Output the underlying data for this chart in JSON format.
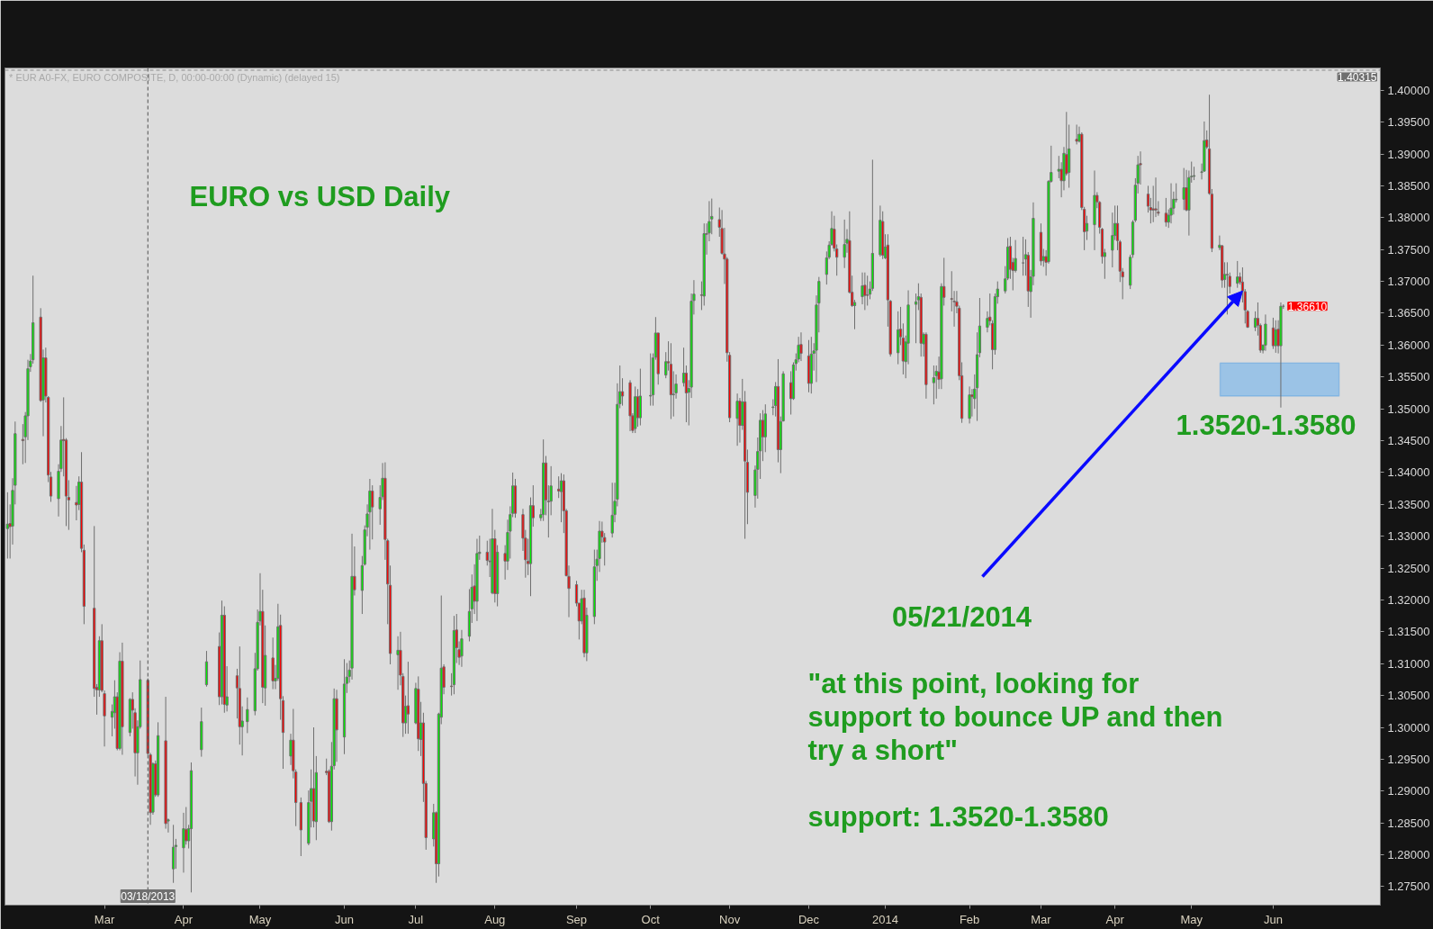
{
  "chart_data": {
    "type": "candlestick",
    "title": "EURO vs USD Daily",
    "subtitle": "* EUR A0-FX, EURO COMPOSITE, D, 00:00-00:00 (Dynamic) (delayed 15)",
    "x": [
      "2013-01-22",
      "2013-01-23",
      "2013-01-24",
      "2013-01-25",
      "2013-01-28",
      "2013-01-29",
      "2013-01-30",
      "2013-01-31",
      "2013-02-01",
      "2013-02-04",
      "2013-02-05",
      "2013-02-06",
      "2013-02-07",
      "2013-02-08",
      "2013-02-11",
      "2013-02-12",
      "2013-02-13",
      "2013-02-14",
      "2013-02-15",
      "2013-02-18",
      "2013-02-19",
      "2013-02-20",
      "2013-02-21",
      "2013-02-25",
      "2013-02-26",
      "2013-02-27",
      "2013-02-28",
      "2013-03-01",
      "2013-03-04",
      "2013-03-05",
      "2013-03-06",
      "2013-03-07",
      "2013-03-08",
      "2013-03-11",
      "2013-03-12",
      "2013-03-13",
      "2013-03-14",
      "2013-03-15",
      "2013-03-18",
      "2013-03-19",
      "2013-03-20",
      "2013-03-21",
      "2013-03-22",
      "2013-03-25",
      "2013-03-26",
      "2013-03-28",
      "2013-03-29",
      "2013-04-01",
      "2013-04-02",
      "2013-04-03",
      "2013-04-04",
      "2013-04-08",
      "2013-04-10",
      "2013-04-15",
      "2013-04-16",
      "2013-04-17",
      "2013-04-18",
      "2013-04-22",
      "2013-04-23",
      "2013-04-24",
      "2013-04-26",
      "2013-04-29",
      "2013-04-30",
      "2013-05-01",
      "2013-05-02",
      "2013-05-03",
      "2013-05-06",
      "2013-05-07",
      "2013-05-08",
      "2013-05-09",
      "2013-05-10",
      "2013-05-13",
      "2013-05-14",
      "2013-05-15",
      "2013-05-17",
      "2013-05-20",
      "2013-05-21",
      "2013-05-22",
      "2013-05-23",
      "2013-05-27",
      "2013-05-28",
      "2013-05-29",
      "2013-05-30",
      "2013-05-31",
      "2013-06-03",
      "2013-06-04",
      "2013-06-05",
      "2013-06-06",
      "2013-06-07",
      "2013-06-10",
      "2013-06-11",
      "2013-06-12",
      "2013-06-13",
      "2013-06-14",
      "2013-06-17",
      "2013-06-18",
      "2013-06-19",
      "2013-06-20",
      "2013-06-21",
      "2013-06-24",
      "2013-06-25",
      "2013-06-26",
      "2013-06-27",
      "2013-06-28",
      "2013-07-01",
      "2013-07-02",
      "2013-07-03",
      "2013-07-04",
      "2013-07-05",
      "2013-07-08",
      "2013-07-09",
      "2013-07-10",
      "2013-07-11",
      "2013-07-12",
      "2013-07-15",
      "2013-07-16",
      "2013-07-17",
      "2013-07-18",
      "2013-07-19",
      "2013-07-22",
      "2013-07-23",
      "2013-07-24",
      "2013-07-25",
      "2013-07-26",
      "2013-07-29",
      "2013-07-30",
      "2013-07-31",
      "2013-08-01",
      "2013-08-02",
      "2013-08-05",
      "2013-08-06",
      "2013-08-07",
      "2013-08-08",
      "2013-08-09",
      "2013-08-12",
      "2013-08-13",
      "2013-08-14",
      "2013-08-15",
      "2013-08-16",
      "2013-08-19",
      "2013-08-20",
      "2013-08-21",
      "2013-08-22",
      "2013-08-23",
      "2013-08-26",
      "2013-08-27",
      "2013-08-28",
      "2013-08-29",
      "2013-08-30",
      "2013-09-02",
      "2013-09-03",
      "2013-09-04",
      "2013-09-05",
      "2013-09-06",
      "2013-09-09",
      "2013-09-10",
      "2013-09-11",
      "2013-09-12",
      "2013-09-13",
      "2013-09-16",
      "2013-09-17",
      "2013-09-18",
      "2013-09-19",
      "2013-09-20",
      "2013-09-23",
      "2013-09-24",
      "2013-09-25",
      "2013-09-26",
      "2013-09-27",
      "2013-10-01",
      "2013-10-02",
      "2013-10-03",
      "2013-10-04",
      "2013-10-07",
      "2013-10-08",
      "2013-10-09",
      "2013-10-10",
      "2013-10-11",
      "2013-10-14",
      "2013-10-15",
      "2013-10-16",
      "2013-10-17",
      "2013-10-18",
      "2013-10-21",
      "2013-10-22",
      "2013-10-23",
      "2013-10-24",
      "2013-10-25",
      "2013-10-28",
      "2013-10-29",
      "2013-10-30",
      "2013-10-31",
      "2013-11-01",
      "2013-11-04",
      "2013-11-05",
      "2013-11-06",
      "2013-11-07",
      "2013-11-08",
      "2013-11-11",
      "2013-11-12",
      "2013-11-13",
      "2013-11-14",
      "2013-11-15",
      "2013-11-18",
      "2013-11-19",
      "2013-11-20",
      "2013-11-21",
      "2013-11-22",
      "2013-11-25",
      "2013-11-26",
      "2013-11-27",
      "2013-11-28",
      "2013-11-29",
      "2013-12-02",
      "2013-12-03",
      "2013-12-04",
      "2013-12-05",
      "2013-12-06",
      "2013-12-09",
      "2013-12-10",
      "2013-12-11",
      "2013-12-12",
      "2013-12-13",
      "2013-12-16",
      "2013-12-17",
      "2013-12-18",
      "2013-12-19",
      "2013-12-20",
      "2013-12-23",
      "2013-12-24",
      "2013-12-25",
      "2013-12-26",
      "2013-12-27",
      "2013-12-30",
      "2013-12-31",
      "2014-01-01",
      "2014-01-02",
      "2014-01-03",
      "2014-01-06",
      "2014-01-07",
      "2014-01-08",
      "2014-01-09",
      "2014-01-10",
      "2014-01-13",
      "2014-01-14",
      "2014-01-15",
      "2014-01-16",
      "2014-01-17",
      "2014-01-20",
      "2014-01-21",
      "2014-01-22",
      "2014-01-23",
      "2014-01-24",
      "2014-01-27",
      "2014-01-28",
      "2014-01-29",
      "2014-01-30",
      "2014-01-31",
      "2014-02-03",
      "2014-02-04",
      "2014-02-05",
      "2014-02-06",
      "2014-02-07",
      "2014-02-10",
      "2014-02-11",
      "2014-02-12",
      "2014-02-13",
      "2014-02-14",
      "2014-02-17",
      "2014-02-18",
      "2014-02-19",
      "2014-02-20",
      "2014-02-21",
      "2014-02-24",
      "2014-02-25",
      "2014-02-26",
      "2014-02-27",
      "2014-02-28",
      "2014-03-03",
      "2014-03-04",
      "2014-03-05",
      "2014-03-06",
      "2014-03-07",
      "2014-03-10",
      "2014-03-11",
      "2014-03-12",
      "2014-03-13",
      "2014-03-14",
      "2014-03-17",
      "2014-03-18",
      "2014-03-19",
      "2014-03-20",
      "2014-03-21",
      "2014-03-24",
      "2014-03-25",
      "2014-03-26",
      "2014-03-27",
      "2014-03-28",
      "2014-03-31",
      "2014-04-01",
      "2014-04-02",
      "2014-04-03",
      "2014-04-04",
      "2014-04-07",
      "2014-04-08",
      "2014-04-09",
      "2014-04-10",
      "2014-04-11",
      "2014-04-14",
      "2014-04-15",
      "2014-04-16",
      "2014-04-17",
      "2014-04-18",
      "2014-04-21",
      "2014-04-22",
      "2014-04-23",
      "2014-04-24",
      "2014-04-25",
      "2014-04-28",
      "2014-04-29",
      "2014-04-30",
      "2014-05-01",
      "2014-05-02",
      "2014-05-05",
      "2014-05-06",
      "2014-05-07",
      "2014-05-08",
      "2014-05-09",
      "2014-05-12",
      "2014-05-13",
      "2014-05-14",
      "2014-05-15",
      "2014-05-16",
      "2014-05-19",
      "2014-05-20",
      "2014-05-21",
      "2014-05-22",
      "2014-05-23",
      "2014-05-26",
      "2014-05-27",
      "2014-05-28",
      "2014-05-29",
      "2014-05-30",
      "2014-06-02",
      "2014-06-03",
      "2014-06-04",
      "2014-06-05",
      "2014-06-06"
    ],
    "ohlc": [
      [
        1.3312,
        1.3369,
        1.3265,
        1.3319
      ],
      [
        1.332,
        1.335,
        1.3265,
        1.3315
      ],
      [
        1.3316,
        1.3391,
        1.3287,
        1.3372
      ],
      [
        1.338,
        1.348,
        1.335,
        1.3461
      ],
      [
        1.3452,
        1.3476,
        1.3413,
        1.345
      ],
      [
        1.3456,
        1.3495,
        1.3415,
        1.3489
      ],
      [
        1.3489,
        1.3577,
        1.3451,
        1.3563
      ],
      [
        1.3566,
        1.3586,
        1.3558,
        1.3575
      ],
      [
        1.3577,
        1.3709,
        1.3571,
        1.3635
      ],
      [
        1.3644,
        1.3658,
        1.3511,
        1.3513
      ],
      [
        1.3514,
        1.3593,
        1.3457,
        1.358
      ],
      [
        1.358,
        1.3596,
        1.351,
        1.352
      ],
      [
        1.3518,
        1.352,
        1.3385,
        1.3396
      ],
      [
        1.3393,
        1.3401,
        1.3354,
        1.3363
      ],
      [
        1.3359,
        1.3413,
        1.3331,
        1.3402
      ],
      [
        1.3406,
        1.3473,
        1.3401,
        1.3451
      ],
      [
        1.3452,
        1.3518,
        1.3394,
        1.345
      ],
      [
        1.3451,
        1.3454,
        1.3316,
        1.3363
      ],
      [
        1.3361,
        1.3388,
        1.331,
        1.3357
      ],
      [
        1.3353,
        1.3379,
        1.3325,
        1.3349
      ],
      [
        1.335,
        1.3394,
        1.3341,
        1.3385
      ],
      [
        1.3385,
        1.3432,
        1.3275,
        1.3281
      ],
      [
        1.3278,
        1.3287,
        1.3162,
        1.319
      ],
      [
        1.3187,
        1.3316,
        1.3048,
        1.3061
      ],
      [
        1.3063,
        1.3068,
        1.302,
        1.3059
      ],
      [
        1.3059,
        1.3143,
        1.3048,
        1.3136
      ],
      [
        1.3136,
        1.3162,
        1.3055,
        1.3058
      ],
      [
        1.3053,
        1.3058,
        1.297,
        1.3018
      ],
      [
        1.3016,
        1.3036,
        1.2986,
        1.3025
      ],
      [
        1.3023,
        1.3074,
        1.2998,
        1.3048
      ],
      [
        1.3048,
        1.3055,
        1.2964,
        1.2967
      ],
      [
        1.2967,
        1.3118,
        1.2964,
        1.3104
      ],
      [
        1.3104,
        1.3133,
        1.2957,
        1.3001
      ],
      [
        1.2992,
        1.3046,
        1.2986,
        1.3044
      ],
      [
        1.3044,
        1.3055,
        1.2998,
        1.3027
      ],
      [
        1.3023,
        1.303,
        1.2923,
        1.296
      ],
      [
        1.296,
        1.3011,
        1.291,
        1.3001
      ],
      [
        1.3001,
        1.3105,
        1.2998,
        1.3075
      ],
      [
        1.3074,
        1.3077,
        1.2957,
        1.2959
      ],
      [
        1.2957,
        1.296,
        1.2847,
        1.2866
      ],
      [
        1.2867,
        1.2945,
        1.2863,
        1.2943
      ],
      [
        1.2943,
        1.2948,
        1.2891,
        1.2894
      ],
      [
        1.2894,
        1.3008,
        1.2891,
        1.2987
      ],
      [
        1.2979,
        1.3048,
        1.2841,
        1.2849
      ],
      [
        1.2853,
        1.2857,
        1.2835,
        1.2855
      ],
      [
        1.2778,
        1.2847,
        1.2756,
        1.2812
      ],
      [
        1.2813,
        1.2825,
        1.2778,
        1.2815
      ],
      [
        1.2811,
        1.2866,
        1.2772,
        1.2841
      ],
      [
        1.284,
        1.2875,
        1.2816,
        1.2822
      ],
      [
        1.2822,
        1.2847,
        1.281,
        1.2841
      ],
      [
        1.2841,
        1.2945,
        1.2741,
        1.2932
      ],
      [
        1.2965,
        1.3031,
        1.2954,
        1.3009
      ],
      [
        1.3067,
        1.312,
        1.3064,
        1.3103
      ],
      [
        1.3127,
        1.3149,
        1.3035,
        1.3048
      ],
      [
        1.3048,
        1.3199,
        1.3036,
        1.3176
      ],
      [
        1.3176,
        1.319,
        1.3023,
        1.3036
      ],
      [
        1.3035,
        1.3096,
        1.3025,
        1.3048
      ],
      [
        1.3081,
        1.3092,
        1.3014,
        1.3062
      ],
      [
        1.3061,
        1.3127,
        1.2973,
        1.3001
      ],
      [
        1.3001,
        1.3033,
        1.2956,
        1.301
      ],
      [
        1.3009,
        1.3047,
        1.2991,
        1.3028
      ],
      [
        1.3026,
        1.3117,
        1.3019,
        1.3092
      ],
      [
        1.3092,
        1.3185,
        1.3089,
        1.3165
      ],
      [
        1.3167,
        1.3242,
        1.316,
        1.3182
      ],
      [
        1.3182,
        1.3216,
        1.3038,
        1.3063
      ],
      [
        1.3062,
        1.316,
        1.3034,
        1.3113
      ],
      [
        1.3109,
        1.3141,
        1.306,
        1.3073
      ],
      [
        1.3073,
        1.3098,
        1.306,
        1.3077
      ],
      [
        1.3077,
        1.3194,
        1.3073,
        1.3158
      ],
      [
        1.316,
        1.3177,
        1.3012,
        1.3045
      ],
      [
        1.3042,
        1.3049,
        1.2935,
        1.2992
      ],
      [
        1.2955,
        1.299,
        1.2941,
        1.298
      ],
      [
        1.298,
        1.3029,
        1.292,
        1.2932
      ],
      [
        1.293,
        1.2934,
        1.2845,
        1.2882
      ],
      [
        1.2882,
        1.289,
        1.2798,
        1.2839
      ],
      [
        1.2818,
        1.2901,
        1.2815,
        1.2882
      ],
      [
        1.2884,
        1.2934,
        1.2843,
        1.2904
      ],
      [
        1.2904,
        1.3,
        1.2843,
        1.2853
      ],
      [
        1.2852,
        1.2955,
        1.2823,
        1.2929
      ],
      [
        1.2931,
        1.2951,
        1.2925,
        1.2929
      ],
      [
        1.2931,
        1.2934,
        1.285,
        1.2852
      ],
      [
        1.2852,
        1.2977,
        1.2838,
        1.2939
      ],
      [
        1.294,
        1.3061,
        1.2934,
        1.3045
      ],
      [
        1.3045,
        1.3059,
        1.2946,
        1.2996
      ],
      [
        1.2985,
        1.3107,
        1.2958,
        1.3068
      ],
      [
        1.3069,
        1.3101,
        1.3054,
        1.3079
      ],
      [
        1.308,
        1.3105,
        1.307,
        1.309
      ],
      [
        1.3093,
        1.3304,
        1.3075,
        1.3237
      ],
      [
        1.3237,
        1.3284,
        1.3207,
        1.3216
      ],
      [
        1.3215,
        1.3269,
        1.3178,
        1.3254
      ],
      [
        1.3256,
        1.3317,
        1.3254,
        1.331
      ],
      [
        1.3314,
        1.335,
        1.33,
        1.3335
      ],
      [
        1.3338,
        1.339,
        1.3279,
        1.3371
      ],
      [
        1.3371,
        1.338,
        1.3295,
        1.3346
      ],
      [
        1.3343,
        1.338,
        1.3318,
        1.3361
      ],
      [
        1.3362,
        1.3415,
        1.3357,
        1.3391
      ],
      [
        1.3391,
        1.3416,
        1.3263,
        1.3295
      ],
      [
        1.3293,
        1.3296,
        1.3162,
        1.3225
      ],
      [
        1.3223,
        1.3254,
        1.3099,
        1.3116
      ],
      [
        1.3114,
        1.3143,
        1.3059,
        1.3121
      ],
      [
        1.3121,
        1.315,
        1.3066,
        1.3082
      ],
      [
        1.308,
        1.3085,
        1.2985,
        1.3007
      ],
      [
        1.3007,
        1.305,
        1.299,
        1.3033
      ],
      [
        1.3034,
        1.3103,
        1.299,
        1.3021
      ],
      [
        1.3007,
        1.307,
        1.3005,
        1.3061
      ],
      [
        1.306,
        1.308,
        1.2963,
        1.2982
      ],
      [
        1.2981,
        1.304,
        1.2955,
        1.3007
      ],
      [
        1.3007,
        1.3023,
        1.2883,
        1.2912
      ],
      [
        1.2912,
        1.2916,
        1.2808,
        1.2827
      ],
      [
        1.2825,
        1.288,
        1.2813,
        1.2866
      ],
      [
        1.2866,
        1.2868,
        1.2756,
        1.2786
      ],
      [
        1.2786,
        1.3023,
        1.2766,
        1.3021
      ],
      [
        1.3016,
        1.3207,
        1.3005,
        1.3093
      ],
      [
        1.3095,
        1.3099,
        1.3052,
        1.3063
      ],
      [
        1.3065,
        1.3085,
        1.305,
        1.3064
      ],
      [
        1.3067,
        1.3175,
        1.3052,
        1.3152
      ],
      [
        1.3153,
        1.3178,
        1.3101,
        1.3125
      ],
      [
        1.3122,
        1.3135,
        1.3098,
        1.311
      ],
      [
        1.3112,
        1.3153,
        1.3095,
        1.3139
      ],
      [
        1.3143,
        1.3217,
        1.3135,
        1.3182
      ],
      [
        1.3186,
        1.324,
        1.3164,
        1.322
      ],
      [
        1.3222,
        1.3256,
        1.3178,
        1.3198
      ],
      [
        1.3198,
        1.3296,
        1.3167,
        1.3273
      ],
      [
        1.3273,
        1.3301,
        1.3263,
        1.3275
      ],
      [
        1.3275,
        1.3293,
        1.3254,
        1.3262
      ],
      [
        1.3261,
        1.3296,
        1.3236,
        1.326
      ],
      [
        1.3211,
        1.3343,
        1.3209,
        1.3296
      ],
      [
        1.3296,
        1.331,
        1.3196,
        1.321
      ],
      [
        1.321,
        1.3286,
        1.319,
        1.3275
      ],
      [
        1.3273,
        1.3286,
        1.3232,
        1.3261
      ],
      [
        1.3261,
        1.3326,
        1.3247,
        1.3306
      ],
      [
        1.3308,
        1.3347,
        1.3265,
        1.3334
      ],
      [
        1.3336,
        1.34,
        1.333,
        1.3379
      ],
      [
        1.3379,
        1.339,
        1.3329,
        1.3336
      ],
      [
        1.3334,
        1.3343,
        1.3277,
        1.3297
      ],
      [
        1.3297,
        1.331,
        1.3235,
        1.3263
      ],
      [
        1.3261,
        1.3296,
        1.3239,
        1.3257
      ],
      [
        1.3257,
        1.3361,
        1.3206,
        1.3348
      ],
      [
        1.3348,
        1.338,
        1.3315,
        1.3329
      ],
      [
        1.3329,
        1.3343,
        1.3324,
        1.3334
      ],
      [
        1.3334,
        1.3452,
        1.3324,
        1.3415
      ],
      [
        1.3415,
        1.3426,
        1.3333,
        1.3357
      ],
      [
        1.3355,
        1.338,
        1.3298,
        1.3354
      ],
      [
        1.3355,
        1.341,
        1.3333,
        1.3379
      ],
      [
        1.3374,
        1.3394,
        1.336,
        1.3371
      ],
      [
        1.337,
        1.3399,
        1.3322,
        1.3387
      ],
      [
        1.3387,
        1.3397,
        1.3305,
        1.334
      ],
      [
        1.334,
        1.3343,
        1.3237,
        1.3238
      ],
      [
        1.3237,
        1.3254,
        1.3173,
        1.3218
      ],
      [
        1.3224,
        1.323,
        1.319,
        1.3195
      ],
      [
        1.3195,
        1.3195,
        1.3138,
        1.3167
      ],
      [
        1.3167,
        1.3216,
        1.3162,
        1.3202
      ],
      [
        1.3203,
        1.3216,
        1.311,
        1.3117
      ],
      [
        1.3117,
        1.3188,
        1.3104,
        1.3176
      ],
      [
        1.3174,
        1.3279,
        1.3162,
        1.3252
      ],
      [
        1.3254,
        1.3279,
        1.323,
        1.3264
      ],
      [
        1.3265,
        1.3324,
        1.3244,
        1.3308
      ],
      [
        1.3308,
        1.3323,
        1.329,
        1.3299
      ],
      [
        1.3298,
        1.3305,
        1.3254,
        1.3291
      ],
      [
        1.3305,
        1.3384,
        1.3298,
        1.3333
      ],
      [
        1.3334,
        1.3384,
        1.3322,
        1.3355
      ],
      [
        1.3358,
        1.354,
        1.3347,
        1.3507
      ],
      [
        1.3508,
        1.3568,
        1.3501,
        1.3527
      ],
      [
        1.3527,
        1.3548,
        1.3505,
        1.352
      ],
      [
        1.3541,
        1.3545,
        1.3465,
        1.3489
      ],
      [
        1.3489,
        1.3493,
        1.3462,
        1.3466
      ],
      [
        1.3469,
        1.3535,
        1.3462,
        1.3519
      ],
      [
        1.3519,
        1.3531,
        1.3472,
        1.3486
      ],
      [
        1.3486,
        1.3563,
        1.3474,
        1.352
      ],
      [
        1.352,
        1.3587,
        1.3505,
        1.3521
      ],
      [
        1.3522,
        1.3587,
        1.3505,
        1.358
      ],
      [
        1.3581,
        1.3644,
        1.3577,
        1.3619
      ],
      [
        1.3619,
        1.3619,
        1.3538,
        1.3555
      ],
      [
        1.3553,
        1.3589,
        1.3548,
        1.3574
      ],
      [
        1.3574,
        1.3606,
        1.356,
        1.3572
      ],
      [
        1.357,
        1.3603,
        1.3484,
        1.3522
      ],
      [
        1.3522,
        1.3559,
        1.3488,
        1.3523
      ],
      [
        1.3525,
        1.3554,
        1.3516,
        1.3539
      ],
      [
        1.3541,
        1.3596,
        1.3535,
        1.3556
      ],
      [
        1.3556,
        1.3568,
        1.3479,
        1.3525
      ],
      [
        1.3526,
        1.3545,
        1.3474,
        1.3532
      ],
      [
        1.3534,
        1.3681,
        1.3517,
        1.3669
      ],
      [
        1.367,
        1.3702,
        1.3648,
        1.368
      ],
      [
        1.3679,
        1.37,
        1.3655,
        1.3678
      ],
      [
        1.3677,
        1.3791,
        1.3662,
        1.3775
      ],
      [
        1.3775,
        1.3791,
        1.3742,
        1.3774
      ],
      [
        1.3776,
        1.3826,
        1.3763,
        1.3794
      ],
      [
        1.3798,
        1.383,
        1.3774,
        1.3802
      ],
      [
        1.3797,
        1.3816,
        1.377,
        1.3785
      ],
      [
        1.3783,
        1.3812,
        1.3742,
        1.3744
      ],
      [
        1.3743,
        1.3784,
        1.3696,
        1.3735
      ],
      [
        1.3735,
        1.3738,
        1.3574,
        1.3588
      ],
      [
        1.3584,
        1.3589,
        1.3479,
        1.3486
      ],
      [
        1.3485,
        1.3524,
        1.3442,
        1.3512
      ],
      [
        1.3512,
        1.3517,
        1.3447,
        1.3474
      ],
      [
        1.3474,
        1.3547,
        1.3467,
        1.3511
      ],
      [
        1.3511,
        1.3528,
        1.3296,
        1.3418
      ],
      [
        1.3416,
        1.3436,
        1.3319,
        1.3369
      ],
      [
        1.3364,
        1.3411,
        1.3345,
        1.3404
      ],
      [
        1.3405,
        1.3455,
        1.3359,
        1.3433
      ],
      [
        1.3434,
        1.3493,
        1.339,
        1.3482
      ],
      [
        1.3482,
        1.3498,
        1.3418,
        1.3456
      ],
      [
        1.3456,
        1.3507,
        1.3432,
        1.3492
      ],
      [
        1.3502,
        1.3515,
        1.349,
        1.3503
      ],
      [
        1.3505,
        1.3542,
        1.3488,
        1.3535
      ],
      [
        1.3535,
        1.3578,
        1.3416,
        1.3436
      ],
      [
        1.3436,
        1.3488,
        1.3399,
        1.348
      ],
      [
        1.3481,
        1.3559,
        1.348,
        1.3555
      ],
      [
        1.3541,
        1.3559,
        1.3491,
        1.3516
      ],
      [
        1.3516,
        1.3573,
        1.3514,
        1.3569
      ],
      [
        1.3571,
        1.3587,
        1.356,
        1.3577
      ],
      [
        1.3578,
        1.3613,
        1.3573,
        1.36
      ],
      [
        1.3601,
        1.362,
        1.3575,
        1.3587
      ],
      [
        1.3583,
        1.3608,
        1.3526,
        1.354
      ],
      [
        1.354,
        1.3613,
        1.3524,
        1.3586
      ],
      [
        1.3587,
        1.3603,
        1.356,
        1.3591
      ],
      [
        1.3592,
        1.3678,
        1.3542,
        1.3663
      ],
      [
        1.3666,
        1.3707,
        1.362,
        1.37
      ],
      [
        1.3711,
        1.3747,
        1.3695,
        1.3737
      ],
      [
        1.3738,
        1.3763,
        1.3735,
        1.3757
      ],
      [
        1.3758,
        1.381,
        1.3756,
        1.3783
      ],
      [
        1.3782,
        1.3803,
        1.3747,
        1.3752
      ],
      [
        1.3751,
        1.3758,
        1.3709,
        1.3738
      ],
      [
        1.3738,
        1.3797,
        1.3721,
        1.3758
      ],
      [
        1.376,
        1.3782,
        1.3745,
        1.3766
      ],
      [
        1.3764,
        1.381,
        1.3681,
        1.3683
      ],
      [
        1.3683,
        1.3709,
        1.366,
        1.3662
      ],
      [
        1.3662,
        1.3671,
        1.3625,
        1.3667
      ],
      [
        1.3676,
        1.3714,
        1.3664,
        1.3693
      ],
      [
        1.3694,
        1.3714,
        1.3655,
        1.3678
      ],
      [
        1.3679,
        1.3709,
        1.3662,
        1.3678
      ],
      [
        1.368,
        1.37,
        1.3672,
        1.3688
      ],
      [
        1.3689,
        1.3891,
        1.3685,
        1.3744
      ],
      [
        1.3742,
        1.3819,
        1.3739,
        1.3796
      ],
      [
        1.3794,
        1.381,
        1.3735,
        1.3741
      ],
      [
        1.3737,
        1.3774,
        1.3735,
        1.3754
      ],
      [
        1.3757,
        1.3774,
        1.3629,
        1.3671
      ],
      [
        1.3669,
        1.3671,
        1.3582,
        1.3586
      ],
      [
        1.3588,
        1.3653,
        1.357,
        1.3624
      ],
      [
        1.3625,
        1.366,
        1.36,
        1.3613
      ],
      [
        1.3611,
        1.3634,
        1.3554,
        1.3575
      ],
      [
        1.3574,
        1.3615,
        1.3548,
        1.3605
      ],
      [
        1.3603,
        1.3686,
        1.357,
        1.3663
      ],
      [
        1.3664,
        1.3681,
        1.3603,
        1.3668
      ],
      [
        1.3671,
        1.3697,
        1.3655,
        1.3676
      ],
      [
        1.3675,
        1.3681,
        1.3582,
        1.3603
      ],
      [
        1.3602,
        1.362,
        1.3582,
        1.3617
      ],
      [
        1.3617,
        1.362,
        1.3516,
        1.3538
      ],
      [
        1.3541,
        1.3568,
        1.3507,
        1.3549
      ],
      [
        1.3552,
        1.3568,
        1.3516,
        1.3559
      ],
      [
        1.3558,
        1.3582,
        1.3531,
        1.3546
      ],
      [
        1.3547,
        1.3697,
        1.3531,
        1.3692
      ],
      [
        1.3692,
        1.3737,
        1.3662,
        1.3675
      ],
      [
        1.3673,
        1.3716,
        1.3653,
        1.3672
      ],
      [
        1.3669,
        1.3685,
        1.3629,
        1.3668
      ],
      [
        1.3668,
        1.3685,
        1.365,
        1.3661
      ],
      [
        1.3658,
        1.3662,
        1.3545,
        1.3552
      ],
      [
        1.3552,
        1.3573,
        1.3478,
        1.3485
      ],
      [
        1.3485,
        1.3535,
        1.3477,
        1.3522
      ],
      [
        1.3522,
        1.3531,
        1.3488,
        1.3519
      ],
      [
        1.3516,
        1.3554,
        1.35,
        1.3531
      ],
      [
        1.3533,
        1.362,
        1.3481,
        1.3585
      ],
      [
        1.3588,
        1.3674,
        1.3581,
        1.363
      ],
      [
        1.3628,
        1.3653,
        1.362,
        1.3642
      ],
      [
        1.3644,
        1.3681,
        1.3631,
        1.3638
      ],
      [
        1.3634,
        1.3639,
        1.3562,
        1.3593
      ],
      [
        1.3593,
        1.3681,
        1.3585,
        1.3676
      ],
      [
        1.3676,
        1.37,
        1.3665,
        1.3688
      ],
      [
        1.3685,
        1.3724,
        1.3681,
        1.3704
      ],
      [
        1.3705,
        1.3768,
        1.3702,
        1.3754
      ],
      [
        1.3755,
        1.377,
        1.3704,
        1.3719
      ],
      [
        1.373,
        1.3737,
        1.3686,
        1.3717
      ],
      [
        1.3717,
        1.3765,
        1.3714,
        1.3736
      ],
      [
        1.3729,
        1.377,
        1.3709,
        1.3729
      ],
      [
        1.3735,
        1.3766,
        1.3709,
        1.3742
      ],
      [
        1.3741,
        1.3746,
        1.366,
        1.3685
      ],
      [
        1.3684,
        1.3718,
        1.3643,
        1.3707
      ],
      [
        1.3708,
        1.3824,
        1.3694,
        1.3799
      ],
      [
        1.3777,
        1.3791,
        1.3725,
        1.3732
      ],
      [
        1.3733,
        1.3751,
        1.3723,
        1.3739
      ],
      [
        1.3739,
        1.3749,
        1.3709,
        1.373
      ],
      [
        1.3731,
        1.3859,
        1.3728,
        1.3857
      ],
      [
        1.3857,
        1.3913,
        1.3855,
        1.3871
      ],
      [
        1.3873,
        1.3897,
        1.3862,
        1.3876
      ],
      [
        1.3876,
        1.3887,
        1.3832,
        1.3858
      ],
      [
        1.3858,
        1.3911,
        1.3843,
        1.3901
      ],
      [
        1.3899,
        1.3966,
        1.3866,
        1.3869
      ],
      [
        1.3871,
        1.3946,
        1.3847,
        1.3908
      ],
      [
        1.3923,
        1.3946,
        1.3915,
        1.392
      ],
      [
        1.392,
        1.3943,
        1.3918,
        1.3931
      ],
      [
        1.3931,
        1.3934,
        1.3812,
        1.3816
      ],
      [
        1.3813,
        1.3817,
        1.3749,
        1.3778
      ],
      [
        1.3779,
        1.3803,
        1.3765,
        1.3791
      ],
      [
        1.3789,
        1.3874,
        1.3749,
        1.3835
      ],
      [
        1.3835,
        1.384,
        1.3815,
        1.3825
      ],
      [
        1.3824,
        1.3826,
        1.3775,
        1.3785
      ],
      [
        1.3782,
        1.3784,
        1.3728,
        1.3739
      ],
      [
        1.3739,
        1.3751,
        1.3704,
        1.3745
      ],
      [
        1.3749,
        1.3808,
        1.3722,
        1.3772
      ],
      [
        1.3772,
        1.3819,
        1.3765,
        1.3791
      ],
      [
        1.3791,
        1.3819,
        1.3749,
        1.3764
      ],
      [
        1.3762,
        1.3765,
        1.3699,
        1.3716
      ],
      [
        1.3715,
        1.3721,
        1.3672,
        1.3707
      ],
      [
        1.3694,
        1.3742,
        1.3688,
        1.3738
      ],
      [
        1.3742,
        1.3796,
        1.3737,
        1.3793
      ],
      [
        1.3796,
        1.3862,
        1.3793,
        1.3851
      ],
      [
        1.3854,
        1.3897,
        1.3838,
        1.3883
      ],
      [
        1.3885,
        1.3904,
        1.3852,
        1.3883
      ],
      [
        1.3837,
        1.385,
        1.3808,
        1.3818
      ],
      [
        1.3816,
        1.3831,
        1.3791,
        1.3812
      ],
      [
        1.3814,
        1.385,
        1.3793,
        1.3812
      ],
      [
        1.3814,
        1.3863,
        1.3801,
        1.3812
      ],
      [
        1.3809,
        1.3826,
        1.3803,
        1.3807
      ],
      [
        1.3807,
        1.3831,
        1.3786,
        1.3793
      ],
      [
        1.3793,
        1.3813,
        1.3784,
        1.3804
      ],
      [
        1.3804,
        1.3854,
        1.3791,
        1.3815
      ],
      [
        1.3815,
        1.3841,
        1.3805,
        1.3829
      ],
      [
        1.3828,
        1.3854,
        1.3824,
        1.3829
      ],
      [
        1.3829,
        1.3878,
        1.3812,
        1.3847
      ],
      [
        1.3847,
        1.3875,
        1.381,
        1.3812
      ],
      [
        1.3812,
        1.3874,
        1.3772,
        1.3863
      ],
      [
        1.3864,
        1.3888,
        1.3855,
        1.3865
      ],
      [
        1.3865,
        1.388,
        1.3859,
        1.3866
      ],
      [
        1.3871,
        1.3885,
        1.386,
        1.3872
      ],
      [
        1.3873,
        1.3951,
        1.3873,
        1.3921
      ],
      [
        1.3922,
        1.3937,
        1.3908,
        1.3911
      ],
      [
        1.3908,
        1.3993,
        1.3836,
        1.3838
      ],
      [
        1.3837,
        1.3845,
        1.3746,
        1.3752
      ],
      [
        1.3753,
        1.3772,
        1.3749,
        1.3757
      ],
      [
        1.3756,
        1.3757,
        1.369,
        1.3702
      ],
      [
        1.3703,
        1.373,
        1.369,
        1.3711
      ],
      [
        1.3711,
        1.373,
        1.3648,
        1.371
      ],
      [
        1.3708,
        1.3714,
        1.3681,
        1.3692
      ],
      [
        1.3697,
        1.3732,
        1.369,
        1.3707
      ],
      [
        1.3707,
        1.3714,
        1.3695,
        1.3699
      ],
      [
        1.3699,
        1.3722,
        1.3667,
        1.3685
      ],
      [
        1.3684,
        1.3688,
        1.3634,
        1.3655
      ],
      [
        1.3653,
        1.3655,
        1.3627,
        1.3628
      ],
      [
        1.3628,
        1.3653,
        1.3622,
        1.3642
      ],
      [
        1.3642,
        1.3667,
        1.3615,
        1.3631
      ],
      [
        1.3631,
        1.3634,
        1.3588,
        1.3592
      ],
      [
        1.3592,
        1.3601,
        1.3587,
        1.36
      ],
      [
        1.36,
        1.3648,
        1.3591,
        1.3633
      ],
      [
        1.3627,
        1.3643,
        1.3594,
        1.3599
      ],
      [
        1.3599,
        1.3639,
        1.3588,
        1.3624
      ],
      [
        1.3625,
        1.3639,
        1.3587,
        1.3599
      ],
      [
        1.3599,
        1.3667,
        1.3502,
        1.3661
      ],
      [
        1.3661,
        1.3664,
        1.3657,
        1.3661
      ]
    ],
    "xlim": [
      "2013-01-21",
      "2014-07-14"
    ],
    "xticks": [
      {
        "value": "2013-03-01",
        "label": "Mar"
      },
      {
        "value": "2013-04-01",
        "label": "Apr"
      },
      {
        "value": "2013-05-01",
        "label": "May"
      },
      {
        "value": "2013-06-03",
        "label": "Jun"
      },
      {
        "value": "2013-07-01",
        "label": "Jul"
      },
      {
        "value": "2013-08-01",
        "label": "Aug"
      },
      {
        "value": "2013-09-02",
        "label": "Sep"
      },
      {
        "value": "2013-10-01",
        "label": "Oct"
      },
      {
        "value": "2013-11-01",
        "label": "Nov"
      },
      {
        "value": "2013-12-02",
        "label": "Dec"
      },
      {
        "value": "2014-01-01",
        "label": "2014"
      },
      {
        "value": "2014-02-03",
        "label": "Feb"
      },
      {
        "value": "2014-03-03",
        "label": "Mar"
      },
      {
        "value": "2014-04-01",
        "label": "Apr"
      },
      {
        "value": "2014-05-01",
        "label": "May"
      },
      {
        "value": "2014-06-02",
        "label": "Jun"
      }
    ],
    "ylim": [
      1.2721,
      1.4035
    ],
    "yticks": [
      {
        "value": 1.275,
        "label": "1.27500"
      },
      {
        "value": 1.28,
        "label": "1.28000"
      },
      {
        "value": 1.285,
        "label": "1.28500"
      },
      {
        "value": 1.29,
        "label": "1.29000"
      },
      {
        "value": 1.295,
        "label": "1.29500"
      },
      {
        "value": 1.3,
        "label": "1.30000"
      },
      {
        "value": 1.305,
        "label": "1.30500"
      },
      {
        "value": 1.31,
        "label": "1.31000"
      },
      {
        "value": 1.315,
        "label": "1.31500"
      },
      {
        "value": 1.32,
        "label": "1.32000"
      },
      {
        "value": 1.325,
        "label": "1.32500"
      },
      {
        "value": 1.33,
        "label": "1.33000"
      },
      {
        "value": 1.335,
        "label": "1.33500"
      },
      {
        "value": 1.34,
        "label": "1.34000"
      },
      {
        "value": 1.345,
        "label": "1.34500"
      },
      {
        "value": 1.35,
        "label": "1.35000"
      },
      {
        "value": 1.355,
        "label": "1.35500"
      },
      {
        "value": 1.36,
        "label": "1.36000"
      },
      {
        "value": 1.365,
        "label": "1.36500"
      },
      {
        "value": 1.37,
        "label": "1.37000"
      },
      {
        "value": 1.375,
        "label": "1.37500"
      },
      {
        "value": 1.38,
        "label": "1.38000"
      },
      {
        "value": 1.385,
        "label": "1.38500"
      },
      {
        "value": 1.39,
        "label": "1.39000"
      },
      {
        "value": 1.395,
        "label": "1.39500"
      },
      {
        "value": 1.4,
        "label": "1.40000"
      }
    ],
    "ref_lines": [
      {
        "axis": "x",
        "value": "2013-03-18",
        "label": "03/18/2013",
        "line_style": "dashed",
        "color": "#505050"
      },
      {
        "axis": "y",
        "value": 1.40315,
        "label": "1.40315",
        "line_style": "dashed",
        "color": "#8a8a8a"
      }
    ],
    "bands": [
      {
        "axis": "y",
        "from": 1.352,
        "to": 1.3572,
        "label": "1.3520-1.3580",
        "color": "#9bc3e6"
      }
    ],
    "annotations": [
      {
        "text": "05/21/2014",
        "x": "2014-05-21",
        "y": 1.3685
      },
      "\"at this point, looking for\nsupport to bounce UP and then\ntry a short\"",
      "support: 1.3520-1.3580",
      {
        "text": "1.36610",
        "x": "2014-06-06",
        "y": 1.3661
      }
    ]
  }
}
